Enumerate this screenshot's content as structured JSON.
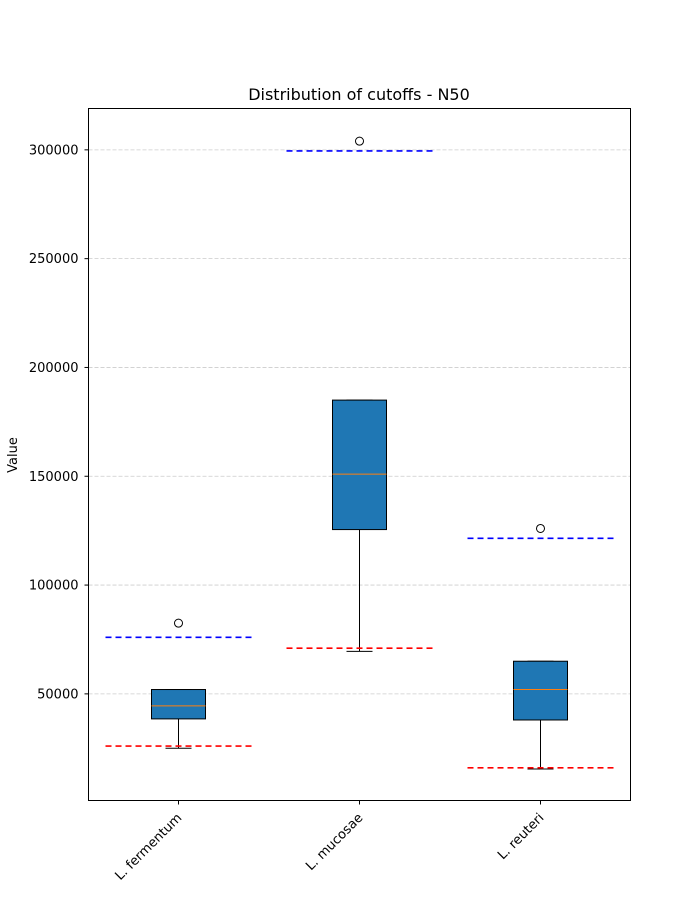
{
  "chart_data": {
    "type": "box",
    "title": "Distribution of cutoffs - N50",
    "xlabel": "",
    "ylabel": "Value",
    "ylim": [
      0,
      320000
    ],
    "yticks": [
      50000,
      100000,
      150000,
      200000,
      250000,
      300000
    ],
    "grid": "y-dashed",
    "categories": [
      "L. fermentum",
      "L. mucosae",
      "L. reuteri"
    ],
    "boxes": [
      {
        "category": "L. fermentum",
        "whisker_low": 25000,
        "q1": 38500,
        "median": 44500,
        "q3": 52000,
        "whisker_high": 52000,
        "outliers": [
          82500
        ],
        "lower_cutoff": 26000,
        "upper_cutoff": 76000
      },
      {
        "category": "L. mucosae",
        "whisker_low": 69500,
        "q1": 125500,
        "median": 151000,
        "q3": 185000,
        "whisker_high": 185000,
        "outliers": [
          304000
        ],
        "lower_cutoff": 71000,
        "upper_cutoff": 299500
      },
      {
        "category": "L. reuteri",
        "whisker_low": 15500,
        "q1": 38000,
        "median": 52000,
        "q3": 65000,
        "whisker_high": 65000,
        "outliers": [
          126000
        ],
        "lower_cutoff": 16000,
        "upper_cutoff": 121500
      }
    ],
    "colors": {
      "box_fill": "#1f77b4",
      "median": "#ff7f0e",
      "lower_cutoff": "#ff0000",
      "upper_cutoff": "#0000ff",
      "grid": "#cccccc"
    }
  }
}
